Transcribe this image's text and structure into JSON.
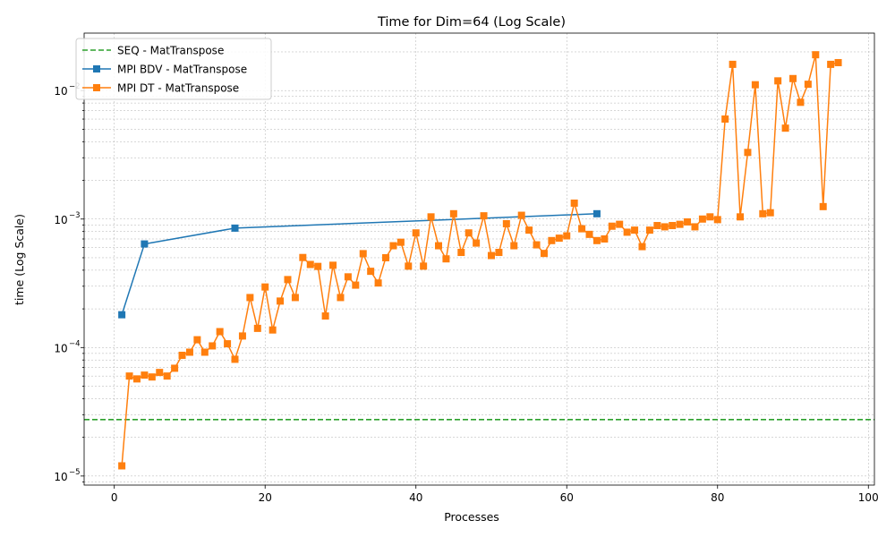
{
  "chart_data": {
    "type": "line",
    "title": "Time for Dim=64 (Log Scale)",
    "xlabel": "Processes",
    "ylabel": "time (Log Scale)",
    "xlim": [
      -4,
      100.8
    ],
    "ylim": [
      8.5e-06,
      0.028
    ],
    "yscale": "log",
    "grid": true,
    "legend_position": "top-left",
    "x_ticks": [
      0,
      20,
      40,
      60,
      80,
      100
    ],
    "x_tick_labels": [
      "0",
      "20",
      "40",
      "60",
      "80",
      "100"
    ],
    "y_ticks": [
      1e-05,
      0.0001,
      0.001,
      0.01
    ],
    "y_tick_labels": [
      "10",
      "10",
      "10",
      "10"
    ],
    "y_tick_exponents": [
      "−5",
      "−4",
      "−3",
      "−2"
    ],
    "series": [
      {
        "name": "SEQ - MatTranspose",
        "color": "#2ca02c",
        "style": "dashed",
        "marker": "none",
        "hline": 2.75e-05
      },
      {
        "name": "MPI BDV - MatTranspose",
        "color": "#1f77b4",
        "style": "solid",
        "marker": "square",
        "x": [
          1,
          4,
          16,
          64
        ],
        "y": [
          0.00018,
          0.00064,
          0.00085,
          0.0011
        ]
      },
      {
        "name": "MPI DT - MatTranspose",
        "color": "#ff7f0e",
        "style": "solid",
        "marker": "square",
        "x": [
          1,
          2,
          3,
          4,
          5,
          6,
          7,
          8,
          9,
          10,
          11,
          12,
          13,
          14,
          15,
          16,
          17,
          18,
          19,
          20,
          21,
          22,
          23,
          24,
          25,
          26,
          27,
          28,
          29,
          30,
          31,
          32,
          33,
          34,
          35,
          36,
          37,
          38,
          39,
          40,
          41,
          42,
          43,
          44,
          45,
          46,
          47,
          48,
          49,
          50,
          51,
          52,
          53,
          54,
          55,
          56,
          57,
          58,
          59,
          60,
          61,
          62,
          63,
          64,
          65,
          66,
          67,
          68,
          69,
          70,
          71,
          72,
          73,
          74,
          75,
          76,
          77,
          78,
          79,
          80,
          81,
          82,
          83,
          84,
          85,
          86,
          87,
          88,
          89,
          90,
          91,
          92,
          93,
          94,
          95,
          96
        ],
        "y": [
          1.2e-05,
          6e-05,
          5.7e-05,
          6.1e-05,
          5.9e-05,
          6.4e-05,
          6e-05,
          6.9e-05,
          8.7e-05,
          9.2e-05,
          0.000115,
          9.2e-05,
          0.000103,
          0.000133,
          0.000107,
          8.1e-05,
          0.000123,
          0.000245,
          0.000141,
          0.000296,
          0.000137,
          0.00023,
          0.000338,
          0.000245,
          0.000502,
          0.000443,
          0.000428,
          0.000176,
          0.000437,
          0.000245,
          0.000355,
          0.000306,
          0.000538,
          0.000392,
          0.000318,
          0.0005,
          0.00062,
          0.00066,
          0.00043,
          0.00078,
          0.00043,
          0.00104,
          0.00062,
          0.00049,
          0.0011,
          0.00055,
          0.00078,
          0.00065,
          0.00106,
          0.00052,
          0.00055,
          0.00092,
          0.00062,
          0.00107,
          0.00082,
          0.00063,
          0.00054,
          0.00068,
          0.00071,
          0.00074,
          0.00133,
          0.00084,
          0.00076,
          0.00068,
          0.0007,
          0.00088,
          0.00091,
          0.00079,
          0.00082,
          0.00061,
          0.00082,
          0.00089,
          0.00087,
          0.00089,
          0.00091,
          0.00095,
          0.00087,
          0.001,
          0.00104,
          0.00099,
          0.006,
          0.016,
          0.00104,
          0.0033,
          0.0111,
          0.0011,
          0.00112,
          0.0119,
          0.0051,
          0.0124,
          0.0081,
          0.0112,
          0.019,
          0.00125,
          0.016,
          0.0165
        ]
      }
    ]
  }
}
